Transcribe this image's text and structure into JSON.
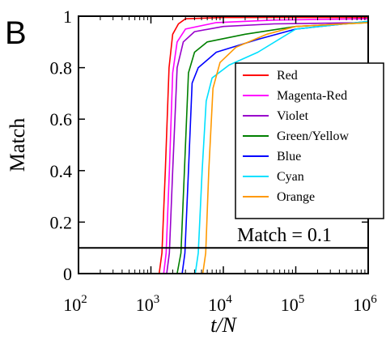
{
  "panel_label": "B",
  "chart_data": {
    "type": "line",
    "title": "",
    "xlabel_italic_t": "t",
    "xlabel_rest": "/N",
    "ylabel": "Match",
    "x_scale": "log",
    "xlim": [
      100,
      1000000
    ],
    "ylim": [
      0,
      1
    ],
    "x_ticks": [
      {
        "value": 100,
        "base": "10",
        "exp": "2"
      },
      {
        "value": 1000,
        "base": "10",
        "exp": "3"
      },
      {
        "value": 10000,
        "base": "10",
        "exp": "4"
      },
      {
        "value": 100000,
        "base": "10",
        "exp": "5"
      },
      {
        "value": 1000000,
        "base": "10",
        "exp": "6"
      }
    ],
    "y_ticks": [
      {
        "value": 0,
        "label": "0"
      },
      {
        "value": 0.2,
        "label": "0.2"
      },
      {
        "value": 0.4,
        "label": "0.4"
      },
      {
        "value": 0.6,
        "label": "0.6"
      },
      {
        "value": 0.8,
        "label": "0.8"
      },
      {
        "value": 1,
        "label": "1"
      }
    ],
    "grid": false,
    "legend_position": "right",
    "reference_line": {
      "y": 0.1,
      "label": "Match = 0.1"
    },
    "series": [
      {
        "name": "Red",
        "color": "#ff0000",
        "points": [
          [
            1300,
            0
          ],
          [
            1420,
            0.08
          ],
          [
            1580,
            0.4
          ],
          [
            1780,
            0.8
          ],
          [
            2000,
            0.93
          ],
          [
            2400,
            0.97
          ],
          [
            3000,
            0.99
          ],
          [
            10000,
            0.995
          ],
          [
            1000000,
            0.995
          ]
        ]
      },
      {
        "name": "Magenta-Red",
        "color": "#ff00ff",
        "points": [
          [
            1500,
            0
          ],
          [
            1620,
            0.08
          ],
          [
            1800,
            0.4
          ],
          [
            2000,
            0.78
          ],
          [
            2300,
            0.9
          ],
          [
            3000,
            0.95
          ],
          [
            8000,
            0.975
          ],
          [
            50000,
            0.985
          ],
          [
            1000000,
            0.99
          ]
        ]
      },
      {
        "name": "Violet",
        "color": "#9900cc",
        "points": [
          [
            1650,
            0
          ],
          [
            1800,
            0.08
          ],
          [
            2000,
            0.4
          ],
          [
            2300,
            0.8
          ],
          [
            2800,
            0.9
          ],
          [
            4000,
            0.94
          ],
          [
            10000,
            0.96
          ],
          [
            50000,
            0.97
          ],
          [
            1000000,
            0.975
          ]
        ]
      },
      {
        "name": "Green/Yellow",
        "color": "#008000",
        "points": [
          [
            2300,
            0
          ],
          [
            2600,
            0.08
          ],
          [
            2900,
            0.4
          ],
          [
            3300,
            0.78
          ],
          [
            4000,
            0.86
          ],
          [
            6000,
            0.9
          ],
          [
            20000,
            0.93
          ],
          [
            100000,
            0.96
          ],
          [
            1000000,
            0.975
          ]
        ]
      },
      {
        "name": "Blue",
        "color": "#0000ff",
        "points": [
          [
            2700,
            0
          ],
          [
            2950,
            0.08
          ],
          [
            3300,
            0.4
          ],
          [
            3700,
            0.74
          ],
          [
            4500,
            0.8
          ],
          [
            8000,
            0.86
          ],
          [
            30000,
            0.91
          ],
          [
            100000,
            0.95
          ],
          [
            1000000,
            0.98
          ]
        ]
      },
      {
        "name": "Cyan",
        "color": "#00e0ff",
        "points": [
          [
            4100,
            0
          ],
          [
            4500,
            0.08
          ],
          [
            5100,
            0.4
          ],
          [
            5800,
            0.67
          ],
          [
            7000,
            0.76
          ],
          [
            12000,
            0.81
          ],
          [
            30000,
            0.86
          ],
          [
            100000,
            0.95
          ],
          [
            1000000,
            0.98
          ]
        ]
      },
      {
        "name": "Orange",
        "color": "#ff9900",
        "points": [
          [
            5200,
            0
          ],
          [
            5700,
            0.08
          ],
          [
            6300,
            0.4
          ],
          [
            7200,
            0.72
          ],
          [
            9000,
            0.82
          ],
          [
            15000,
            0.88
          ],
          [
            40000,
            0.93
          ],
          [
            100000,
            0.96
          ],
          [
            1000000,
            0.975
          ]
        ]
      }
    ]
  }
}
